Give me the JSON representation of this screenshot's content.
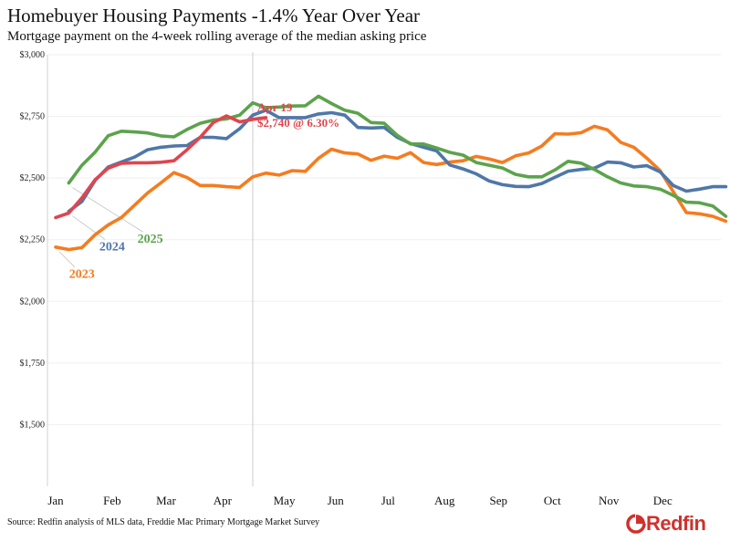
{
  "title": "Homebuyer Housing Payments -1.4% Year Over Year",
  "subtitle": "Mortgage payment on the 4-week rolling average of the median asking price",
  "source": "Source: Redfin analysis of MLS data, Freddie Mac Primary Mortgage Market Survey",
  "logo": {
    "text": "Redfin",
    "icon": "redfin-logo-icon",
    "color": "#d0312d"
  },
  "chart_data": {
    "type": "line",
    "x_unit": "week of year",
    "xlim": [
      1,
      52
    ],
    "ylim": [
      1250,
      3000
    ],
    "y_ticks": [
      {
        "value": 1500,
        "label": "$1,500"
      },
      {
        "value": 1750,
        "label": "$1,750"
      },
      {
        "value": 2000,
        "label": "$2,000"
      },
      {
        "value": 2250,
        "label": "$2,250"
      },
      {
        "value": 2500,
        "label": "$2,500"
      },
      {
        "value": 2750,
        "label": "$2,750"
      },
      {
        "value": 3000,
        "label": "$3,000"
      }
    ],
    "x_ticks": [
      {
        "week": 1,
        "label": "Jan"
      },
      {
        "week": 5.3,
        "label": "Feb"
      },
      {
        "week": 9.4,
        "label": "Mar"
      },
      {
        "week": 13.7,
        "label": "Apr"
      },
      {
        "week": 18.4,
        "label": "May"
      },
      {
        "week": 22.3,
        "label": "Jun"
      },
      {
        "week": 26.3,
        "label": "Jul"
      },
      {
        "week": 30.6,
        "label": "Aug"
      },
      {
        "week": 34.7,
        "label": "Sep"
      },
      {
        "week": 38.8,
        "label": "Oct"
      },
      {
        "week": 43.1,
        "label": "Nov"
      },
      {
        "week": 47.2,
        "label": "Dec"
      }
    ],
    "grid": true,
    "reference_line": {
      "week": 16
    },
    "annotation": {
      "lines": [
        "Apr 19",
        "$2,740 @ 6.30%"
      ],
      "color": "#e0454e"
    },
    "series": [
      {
        "name": "2023",
        "color": "#f47c20",
        "label_week": 3,
        "label_value": 2095,
        "values": [
          [
            1,
            2220
          ],
          [
            2,
            2210
          ],
          [
            3,
            2218
          ],
          [
            4,
            2270
          ],
          [
            5,
            2310
          ],
          [
            6,
            2340
          ],
          [
            7,
            2390
          ],
          [
            8,
            2440
          ],
          [
            9,
            2480
          ],
          [
            10,
            2522
          ],
          [
            11,
            2502
          ],
          [
            12,
            2470
          ],
          [
            13,
            2470
          ],
          [
            14,
            2465
          ],
          [
            15,
            2462
          ],
          [
            16,
            2505
          ],
          [
            17,
            2520
          ],
          [
            18,
            2512
          ],
          [
            19,
            2530
          ],
          [
            20,
            2527
          ],
          [
            21,
            2580
          ],
          [
            22,
            2617
          ],
          [
            23,
            2602
          ],
          [
            24,
            2598
          ],
          [
            25,
            2572
          ],
          [
            26,
            2589
          ],
          [
            27,
            2580
          ],
          [
            28,
            2603
          ],
          [
            29,
            2563
          ],
          [
            30,
            2555
          ],
          [
            31,
            2565
          ],
          [
            32,
            2570
          ],
          [
            33,
            2588
          ],
          [
            34,
            2577
          ],
          [
            35,
            2563
          ],
          [
            36,
            2590
          ],
          [
            37,
            2602
          ],
          [
            38,
            2630
          ],
          [
            39,
            2680
          ],
          [
            40,
            2678
          ],
          [
            41,
            2684
          ],
          [
            42,
            2710
          ],
          [
            43,
            2695
          ],
          [
            44,
            2645
          ],
          [
            45,
            2625
          ],
          [
            46,
            2580
          ],
          [
            47,
            2530
          ],
          [
            48,
            2445
          ],
          [
            49,
            2360
          ],
          [
            50,
            2355
          ],
          [
            51,
            2345
          ],
          [
            52,
            2325
          ]
        ]
      },
      {
        "name": "2024",
        "color": "#4f77a8",
        "label_week": 5.3,
        "label_value": 2207,
        "values": [
          [
            2,
            2365
          ],
          [
            3,
            2405
          ],
          [
            4,
            2490
          ],
          [
            5,
            2545
          ],
          [
            6,
            2565
          ],
          [
            7,
            2585
          ],
          [
            8,
            2615
          ],
          [
            9,
            2625
          ],
          [
            10,
            2630
          ],
          [
            11,
            2632
          ],
          [
            12,
            2665
          ],
          [
            13,
            2665
          ],
          [
            14,
            2660
          ],
          [
            15,
            2700
          ],
          [
            16,
            2755
          ],
          [
            17,
            2775
          ],
          [
            18,
            2745
          ],
          [
            19,
            2745
          ],
          [
            20,
            2745
          ],
          [
            21,
            2760
          ],
          [
            22,
            2765
          ],
          [
            23,
            2755
          ],
          [
            24,
            2705
          ],
          [
            25,
            2703
          ],
          [
            26,
            2705
          ],
          [
            27,
            2665
          ],
          [
            28,
            2640
          ],
          [
            29,
            2625
          ],
          [
            30,
            2610
          ],
          [
            31,
            2553
          ],
          [
            32,
            2537
          ],
          [
            33,
            2517
          ],
          [
            34,
            2488
          ],
          [
            35,
            2473
          ],
          [
            36,
            2466
          ],
          [
            37,
            2465
          ],
          [
            38,
            2478
          ],
          [
            39,
            2503
          ],
          [
            40,
            2528
          ],
          [
            41,
            2535
          ],
          [
            42,
            2540
          ],
          [
            43,
            2565
          ],
          [
            44,
            2562
          ],
          [
            45,
            2545
          ],
          [
            46,
            2550
          ],
          [
            47,
            2525
          ],
          [
            48,
            2470
          ],
          [
            49,
            2447
          ],
          [
            50,
            2455
          ],
          [
            51,
            2465
          ],
          [
            52,
            2465
          ]
        ]
      },
      {
        "name": "2025",
        "color": "#5ca34c",
        "label_week": 8.2,
        "label_value": 2237,
        "values": [
          [
            2,
            2480
          ],
          [
            3,
            2552
          ],
          [
            4,
            2605
          ],
          [
            5,
            2672
          ],
          [
            6,
            2690
          ],
          [
            7,
            2687
          ],
          [
            8,
            2683
          ],
          [
            9,
            2671
          ],
          [
            10,
            2667
          ],
          [
            11,
            2697
          ],
          [
            12,
            2722
          ],
          [
            13,
            2735
          ],
          [
            14,
            2740
          ],
          [
            15,
            2755
          ],
          [
            16,
            2805
          ],
          [
            17,
            2785
          ],
          [
            18,
            2788
          ],
          [
            19,
            2792
          ],
          [
            20,
            2793
          ],
          [
            21,
            2832
          ],
          [
            22,
            2802
          ],
          [
            23,
            2775
          ],
          [
            24,
            2763
          ],
          [
            25,
            2725
          ],
          [
            26,
            2722
          ],
          [
            27,
            2673
          ],
          [
            28,
            2638
          ],
          [
            29,
            2638
          ],
          [
            30,
            2622
          ],
          [
            31,
            2604
          ],
          [
            32,
            2593
          ],
          [
            33,
            2563
          ],
          [
            34,
            2552
          ],
          [
            35,
            2541
          ],
          [
            36,
            2515
          ],
          [
            37,
            2505
          ],
          [
            38,
            2505
          ],
          [
            39,
            2533
          ],
          [
            40,
            2568
          ],
          [
            41,
            2560
          ],
          [
            42,
            2535
          ],
          [
            43,
            2505
          ],
          [
            44,
            2480
          ],
          [
            45,
            2468
          ],
          [
            46,
            2465
          ],
          [
            47,
            2455
          ],
          [
            48,
            2430
          ],
          [
            49,
            2402
          ],
          [
            50,
            2400
          ],
          [
            51,
            2387
          ],
          [
            52,
            2345
          ]
        ]
      },
      {
        "name": "2025 (red)",
        "color": "#e0454e",
        "values": [
          [
            1,
            2340
          ],
          [
            2,
            2358
          ],
          [
            3,
            2420
          ],
          [
            4,
            2493
          ],
          [
            5,
            2540
          ],
          [
            6,
            2560
          ],
          [
            7,
            2562
          ],
          [
            8,
            2562
          ],
          [
            9,
            2564
          ],
          [
            10,
            2570
          ],
          [
            11,
            2615
          ],
          [
            12,
            2665
          ],
          [
            13,
            2725
          ],
          [
            14,
            2752
          ],
          [
            15,
            2728
          ],
          [
            16,
            2738
          ],
          [
            17,
            2745
          ]
        ]
      }
    ]
  }
}
